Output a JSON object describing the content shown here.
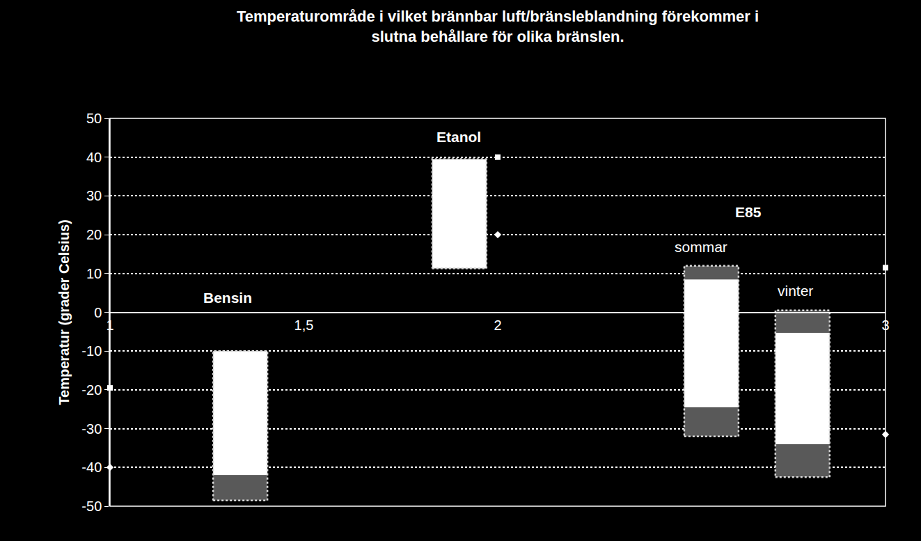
{
  "chart_data": {
    "type": "bar",
    "title": "Temperaturområde i vilket brännbar luft/bränsleblandning förekommer i\nslutna behållare för olika bränslen.",
    "y_label": "Temperatur (grader Celsius)",
    "xlim": [
      1,
      3
    ],
    "xticks": [
      1,
      {
        "value": 1.5,
        "label": "1,5"
      },
      2,
      3
    ],
    "ylim": [
      -50,
      50
    ],
    "yticks": [
      -50,
      -40,
      -30,
      -20,
      -10,
      0,
      10,
      20,
      30,
      40,
      50
    ],
    "grid": true,
    "bars": [
      {
        "x": 1.336,
        "segments": [
          {
            "low": -42,
            "high": -10,
            "color": "#ffffff"
          },
          {
            "low": -48.5,
            "high": -42,
            "color": "#595959"
          }
        ]
      },
      {
        "x": 1.901,
        "segments": [
          {
            "low": 11.3,
            "high": 39.5,
            "color": "#ffffff"
          }
        ]
      },
      {
        "x": 2.551,
        "segments": [
          {
            "low": 8.5,
            "high": 12,
            "color": "#595959"
          },
          {
            "low": -24.5,
            "high": 8.5,
            "color": "#ffffff"
          },
          {
            "low": -32,
            "high": -24.5,
            "color": "#595959"
          }
        ]
      },
      {
        "x": 2.786,
        "segments": [
          {
            "low": -5.3,
            "high": 0.5,
            "color": "#595959"
          },
          {
            "low": -34,
            "high": -5.3,
            "color": "#ffffff"
          },
          {
            "low": -42.5,
            "high": -34,
            "color": "#595959"
          }
        ]
      }
    ],
    "points": [
      {
        "marker": "square",
        "color": "#ffffff",
        "x": [
          1,
          2,
          3
        ],
        "y": [
          -19.5,
          40,
          11.5
        ]
      },
      {
        "marker": "diamond",
        "color": "#ffffff",
        "x": [
          1,
          2,
          3
        ],
        "y": [
          -40,
          20,
          -31.5
        ]
      }
    ],
    "annotations": [
      {
        "text": "Bensin",
        "x": 1.303,
        "y": 3.7,
        "bold": true
      },
      {
        "text": "Etanol",
        "x": 1.9,
        "y": 45.2,
        "bold": true
      },
      {
        "text": "E85",
        "x": 2.646,
        "y": 25.8,
        "bold": true
      },
      {
        "text": "sommar",
        "x": 2.524,
        "y": 16.8,
        "bold": false
      },
      {
        "text": "vinter",
        "x": 2.768,
        "y": 5.5,
        "bold": false
      }
    ]
  }
}
